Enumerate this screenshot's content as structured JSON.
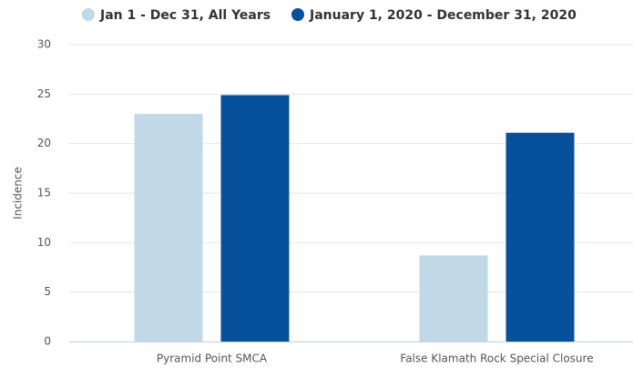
{
  "chart_data": {
    "type": "bar",
    "categories": [
      "Pyramid Point SMCA",
      "False Klamath Rock Special Closure"
    ],
    "series": [
      {
        "name": "Jan 1 - Dec 31, All Years",
        "color": "#c1d8e7",
        "values": [
          23,
          8.7
        ]
      },
      {
        "name": "January 1, 2020 - December 31, 2020",
        "color": "#07509b",
        "values": [
          24.9,
          21.1
        ]
      }
    ],
    "y_label": "Incidence",
    "ylim": [
      0,
      30
    ],
    "yticks": [
      0,
      5,
      10,
      15,
      20,
      25,
      30
    ],
    "grid": true,
    "legend": "top"
  }
}
